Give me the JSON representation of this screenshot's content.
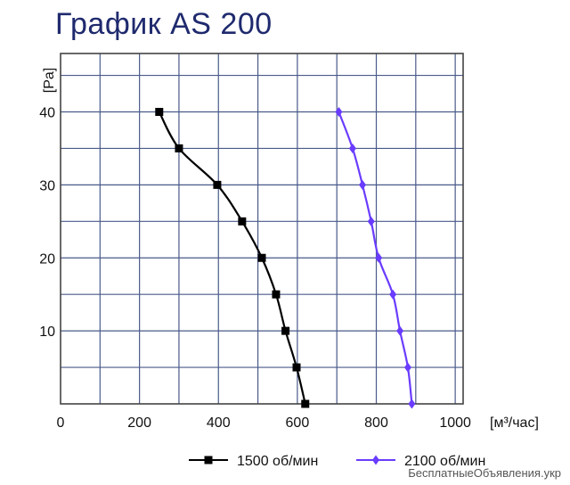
{
  "chart_data": {
    "type": "line",
    "title": "График AS 200",
    "xlabel": "[м³/час]",
    "ylabel": "[Pa]",
    "xlim": [
      0,
      1020
    ],
    "ylim": [
      0,
      48
    ],
    "xticks": [
      0,
      200,
      400,
      600,
      800,
      1000
    ],
    "yticks": [
      10,
      20,
      30,
      40
    ],
    "grid": true,
    "legend_position": "bottom",
    "series": [
      {
        "name": "1500 об/мин",
        "color": "#000000",
        "marker": "square",
        "x": [
          250,
          300,
          397,
          460,
          510,
          546,
          570,
          598,
          620
        ],
        "y": [
          40,
          35,
          30,
          25,
          20,
          15,
          10,
          5,
          0
        ]
      },
      {
        "name": "2100 об/мин",
        "color": "#6a3cff",
        "marker": "diamond",
        "x": [
          705,
          740,
          765,
          787,
          806,
          842,
          860,
          880,
          890
        ],
        "y": [
          40,
          35,
          30,
          25,
          20,
          15,
          10,
          5,
          0
        ]
      }
    ]
  },
  "watermark": "БесплатныеОбъявления.укр"
}
